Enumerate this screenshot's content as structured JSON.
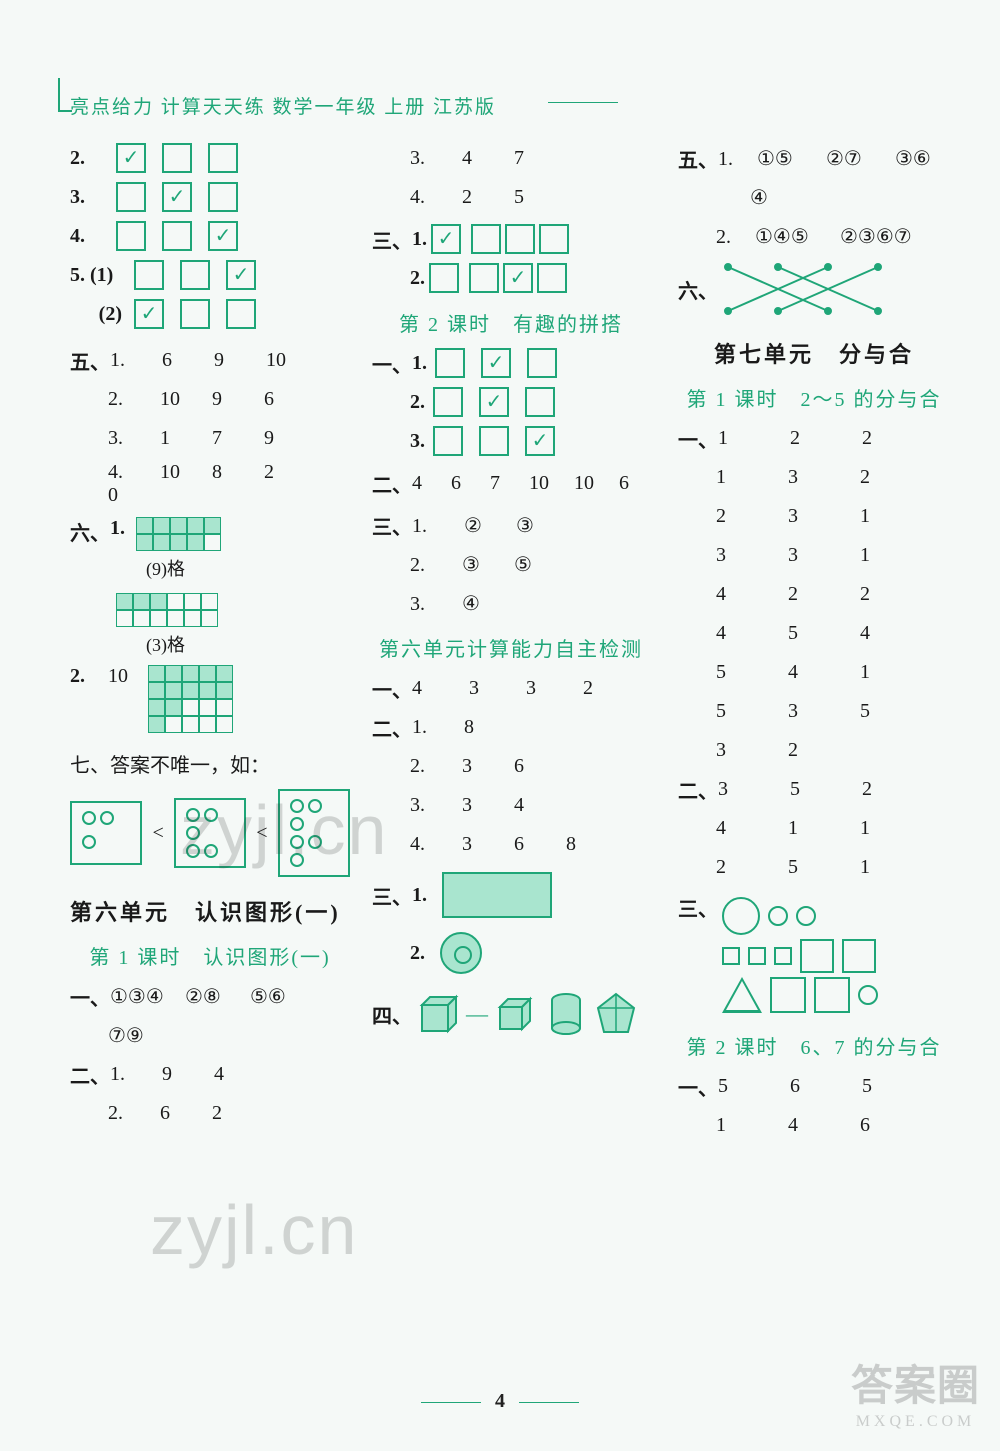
{
  "colors": {
    "accent": "#1fa678",
    "fill": "#a9e5cf",
    "text": "#1a1a1a",
    "bg": "#f5f9f7"
  },
  "header": "亮点给力 计算天天练 数学一年级 上册 江苏版",
  "page_number": "4",
  "col1": {
    "q2_boxes": [
      "✓",
      "",
      ""
    ],
    "q3_boxes": [
      "",
      "✓",
      ""
    ],
    "q4_boxes": [
      "",
      "",
      "✓"
    ],
    "q5_1_boxes": [
      "",
      "",
      "✓"
    ],
    "q5_2_boxes": [
      "✓",
      "",
      ""
    ],
    "q5_label_1": "5. (1)",
    "q5_label_2": "(2)",
    "five_label": "五、",
    "five": {
      "r1": [
        "1.",
        "6",
        "9",
        "10"
      ],
      "r2": [
        "2.",
        "10",
        "9",
        "6"
      ],
      "r3": [
        "3.",
        "1",
        "7",
        "9"
      ],
      "r4": [
        "4.",
        "10",
        "8",
        "2",
        "0"
      ]
    },
    "six_label": "六、",
    "six_1_grid": {
      "rows": 2,
      "cols": 5,
      "filled": [
        [
          1,
          1,
          1,
          1,
          1
        ],
        [
          1,
          1,
          1,
          1,
          0
        ]
      ],
      "caption": "(9)格"
    },
    "six_1b_grid": {
      "rows": 2,
      "cols": 6,
      "filled": [
        [
          1,
          1,
          1,
          0,
          0,
          0
        ],
        [
          0,
          0,
          0,
          0,
          0,
          0
        ]
      ],
      "caption": "(3)格"
    },
    "six_2_label": "2.",
    "six_2_val": "10",
    "six_2_grid": {
      "rows": 4,
      "cols": 5,
      "filled": [
        [
          1,
          1,
          1,
          1,
          1
        ],
        [
          1,
          1,
          1,
          1,
          1
        ],
        [
          1,
          1,
          0,
          0,
          0
        ],
        [
          1,
          0,
          0,
          0,
          0
        ]
      ]
    },
    "seven_label": "七、答案不唯一，如：",
    "seven_dots": {
      "a": 3,
      "b": 5,
      "c": 6
    },
    "unit6_title": "第六单元　认识图形(一)",
    "unit6_sub": "第 1 课时　认识图形(一)",
    "u6_one_label": "一、",
    "u6_one_items": [
      "①③④",
      "②⑧",
      "⑤⑥",
      "⑦⑨"
    ],
    "u6_two_label": "二、",
    "u6_two": {
      "r1": [
        "1.",
        "9",
        "4"
      ],
      "r2": [
        "2.",
        "6",
        "2"
      ]
    }
  },
  "col2": {
    "top": {
      "r3": [
        "3.",
        "4",
        "7"
      ],
      "r4": [
        "4.",
        "2",
        "5"
      ]
    },
    "three_label": "三、",
    "three_1_boxes": [
      "✓",
      "",
      "",
      ""
    ],
    "three_2_boxes": [
      "",
      "",
      "✓",
      ""
    ],
    "sub2_title": "第 2 课时　有趣的拼搭",
    "p2_one_label": "一、",
    "p2_one_1": [
      "",
      "✓",
      ""
    ],
    "p2_one_2": [
      "",
      "✓",
      ""
    ],
    "p2_one_3": [
      "",
      "",
      "✓"
    ],
    "p2_two_label": "二、",
    "p2_two_vals": [
      "4",
      "6",
      "7",
      "10",
      "10",
      "6"
    ],
    "p2_three_label": "三、",
    "p2_three": {
      "r1": [
        "1.",
        "②",
        "③"
      ],
      "r2": [
        "2.",
        "③",
        "⑤"
      ],
      "r3": [
        "3.",
        "④"
      ]
    },
    "test_title": "第六单元计算能力自主检测",
    "t_one_label": "一、",
    "t_one_vals": [
      "4",
      "3",
      "3",
      "2"
    ],
    "t_two_label": "二、",
    "t_two": {
      "r1": [
        "1.",
        "8"
      ],
      "r2": [
        "2.",
        "3",
        "6"
      ],
      "r3": [
        "3.",
        "3",
        "4"
      ],
      "r4": [
        "4.",
        "3",
        "6",
        "8"
      ]
    },
    "t_three_label": "三、",
    "t_three_1": "1.",
    "t_three_2": "2.",
    "t_four_label": "四、"
  },
  "col3": {
    "five_label": "五、",
    "five_1_items": [
      "1.",
      "①⑤",
      "②⑦",
      "③⑥"
    ],
    "five_1b": "④",
    "five_2_items": [
      "2.",
      "①④⑤",
      "②③⑥⑦"
    ],
    "six_label": "六、",
    "unit7_title": "第七单元　分与合",
    "unit7_sub": "第 1 课时　2～5 的分与合",
    "u7_one_label": "一、",
    "u7_one_rows": [
      [
        "1",
        "2",
        "2"
      ],
      [
        "1",
        "3",
        "2"
      ],
      [
        "2",
        "3",
        "1"
      ],
      [
        "3",
        "3",
        "1"
      ],
      [
        "4",
        "2",
        "2"
      ],
      [
        "4",
        "5",
        "4"
      ],
      [
        "5",
        "4",
        "1"
      ],
      [
        "5",
        "3",
        "5"
      ],
      [
        "3",
        "2",
        ""
      ]
    ],
    "u7_two_label": "二、",
    "u7_two_rows": [
      [
        "3",
        "5",
        "2"
      ],
      [
        "4",
        "1",
        "1"
      ],
      [
        "2",
        "5",
        "1"
      ]
    ],
    "u7_three_label": "三、",
    "u7_sub2": "第 2 课时　6、7 的分与合",
    "u7s2_one_label": "一、",
    "u7s2_one_rows": [
      [
        "5",
        "6",
        "5"
      ],
      [
        "1",
        "4",
        "6"
      ]
    ]
  },
  "watermarks": {
    "w1": "zyjl.cn",
    "w2": "zyjl.cn",
    "brand": "答案圈",
    "brand_sub": "MXQE.COM"
  }
}
